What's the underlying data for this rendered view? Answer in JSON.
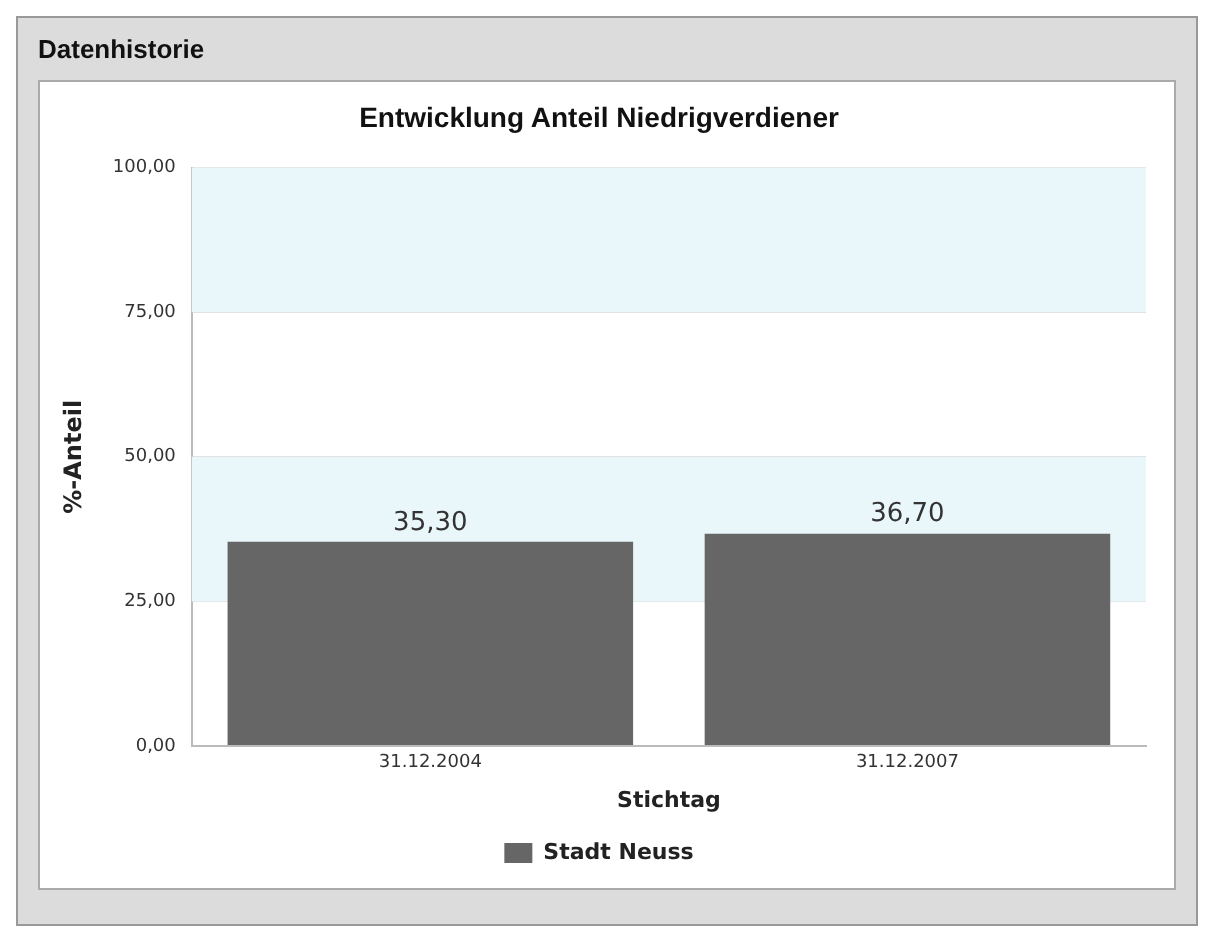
{
  "chart_data": {
    "type": "bar",
    "title": "Entwicklung Anteil Niedrigverdiener",
    "xlabel": "Stichtag",
    "ylabel": "%-Anteil",
    "annotations": [
      "Datenhistorie"
    ],
    "categories": [
      "31.12.2004",
      "31.12.2007"
    ],
    "series": [
      {
        "name": "Stadt Neuss",
        "color": "#666666",
        "values": [
          35.3,
          36.7
        ],
        "value_labels": [
          "35,30",
          "36,70"
        ]
      }
    ],
    "ylim": [
      0,
      100
    ],
    "yticks": [
      {
        "value": 0,
        "label": "0,00"
      },
      {
        "value": 25,
        "label": "25,00"
      },
      {
        "value": 50,
        "label": "50,00"
      },
      {
        "value": 75,
        "label": "75,00"
      },
      {
        "value": 100,
        "label": "100,00"
      }
    ],
    "bands": [
      {
        "axis": "y",
        "from": 25,
        "to": 50,
        "color": "#e9f6fa"
      },
      {
        "axis": "y",
        "from": 75,
        "to": 100,
        "color": "#e9f6fa"
      }
    ],
    "grid": "y",
    "legend": "bottom"
  }
}
